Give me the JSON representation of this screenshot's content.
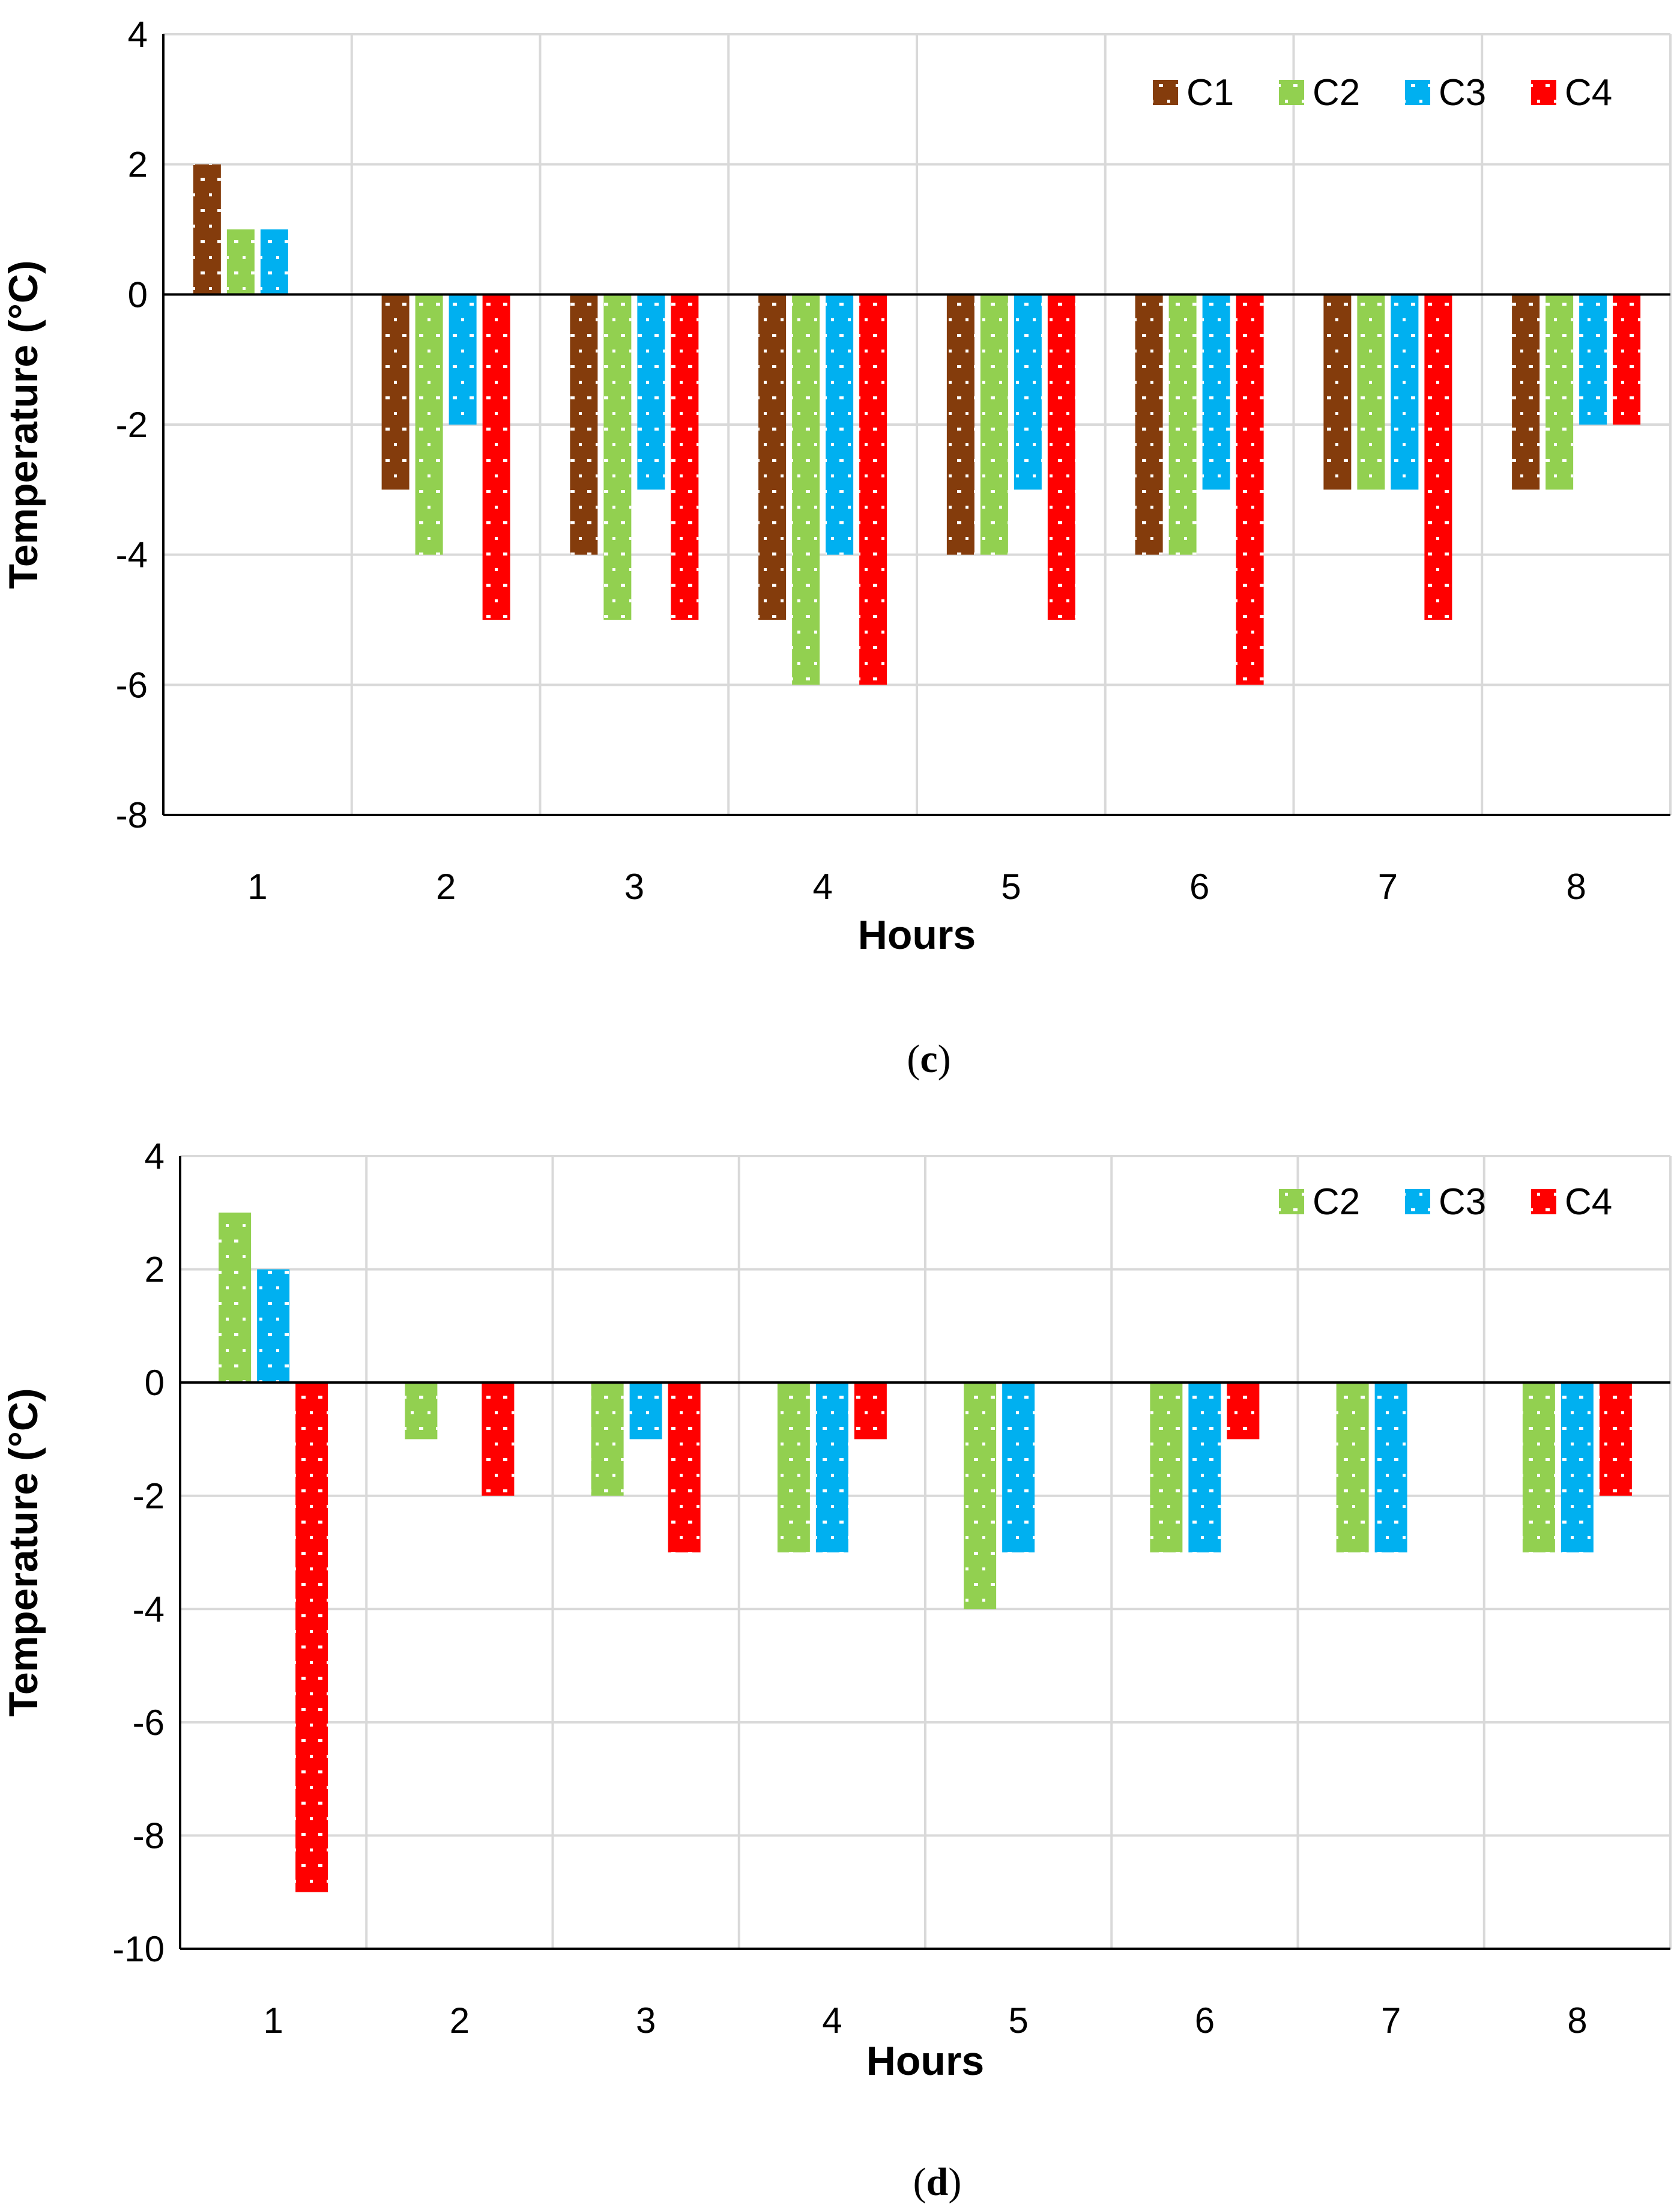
{
  "colors": {
    "C1": "#843C0C",
    "C2": "#92D050",
    "C3": "#00B0F0",
    "C4": "#FF0000",
    "grid": "#D9D9D9",
    "axis": "#000000"
  },
  "chart_data": [
    {
      "type": "bar",
      "panel": "c",
      "caption": {
        "open": "(",
        "letter": "c",
        "close": ")"
      },
      "xlabel": "Hours",
      "ylabel": "Temperature (°C)",
      "categories": [
        "1",
        "2",
        "3",
        "4",
        "5",
        "6",
        "7",
        "8"
      ],
      "ylim": [
        -8,
        4
      ],
      "yticks": [
        4,
        2,
        0,
        -2,
        -4,
        -6,
        -8
      ],
      "ytick_labels": [
        "4",
        "2",
        "0",
        "-2",
        "-4",
        "-6",
        "-8"
      ],
      "grid": true,
      "legend": "top-right",
      "series": [
        {
          "name": "C1",
          "values": [
            2,
            -3,
            -4,
            -5,
            -4,
            -4,
            -3,
            -3
          ]
        },
        {
          "name": "C2",
          "values": [
            1,
            -4,
            -5,
            -6,
            -4,
            -4,
            -3,
            -3
          ]
        },
        {
          "name": "C3",
          "values": [
            1,
            -2,
            -3,
            -4,
            -3,
            -3,
            -3,
            -2
          ]
        },
        {
          "name": "C4",
          "values": [
            null,
            -5,
            -5,
            -6,
            -5,
            -6,
            -5,
            -2
          ]
        }
      ]
    },
    {
      "type": "bar",
      "panel": "d",
      "caption": {
        "open": "(",
        "letter": "d",
        "close": ")"
      },
      "xlabel": "Hours",
      "ylabel": "Temperature (°C)",
      "categories": [
        "1",
        "2",
        "3",
        "4",
        "5",
        "6",
        "7",
        "8"
      ],
      "ylim": [
        -10,
        4
      ],
      "yticks": [
        4,
        2,
        0,
        -2,
        -4,
        -6,
        -8,
        -10
      ],
      "ytick_labels": [
        "4",
        "2",
        "0",
        "-2",
        "-4",
        "-6",
        "-8",
        "-10"
      ],
      "grid": true,
      "legend": "top-right",
      "series": [
        {
          "name": "C2",
          "values": [
            3,
            -1,
            -2,
            -3,
            -4,
            -3,
            -3,
            -3
          ]
        },
        {
          "name": "C3",
          "values": [
            2,
            null,
            -1,
            -3,
            -3,
            -3,
            -3,
            -3
          ]
        },
        {
          "name": "C4",
          "values": [
            -9,
            -2,
            -3,
            -1,
            null,
            -1,
            null,
            -2
          ]
        }
      ]
    }
  ]
}
